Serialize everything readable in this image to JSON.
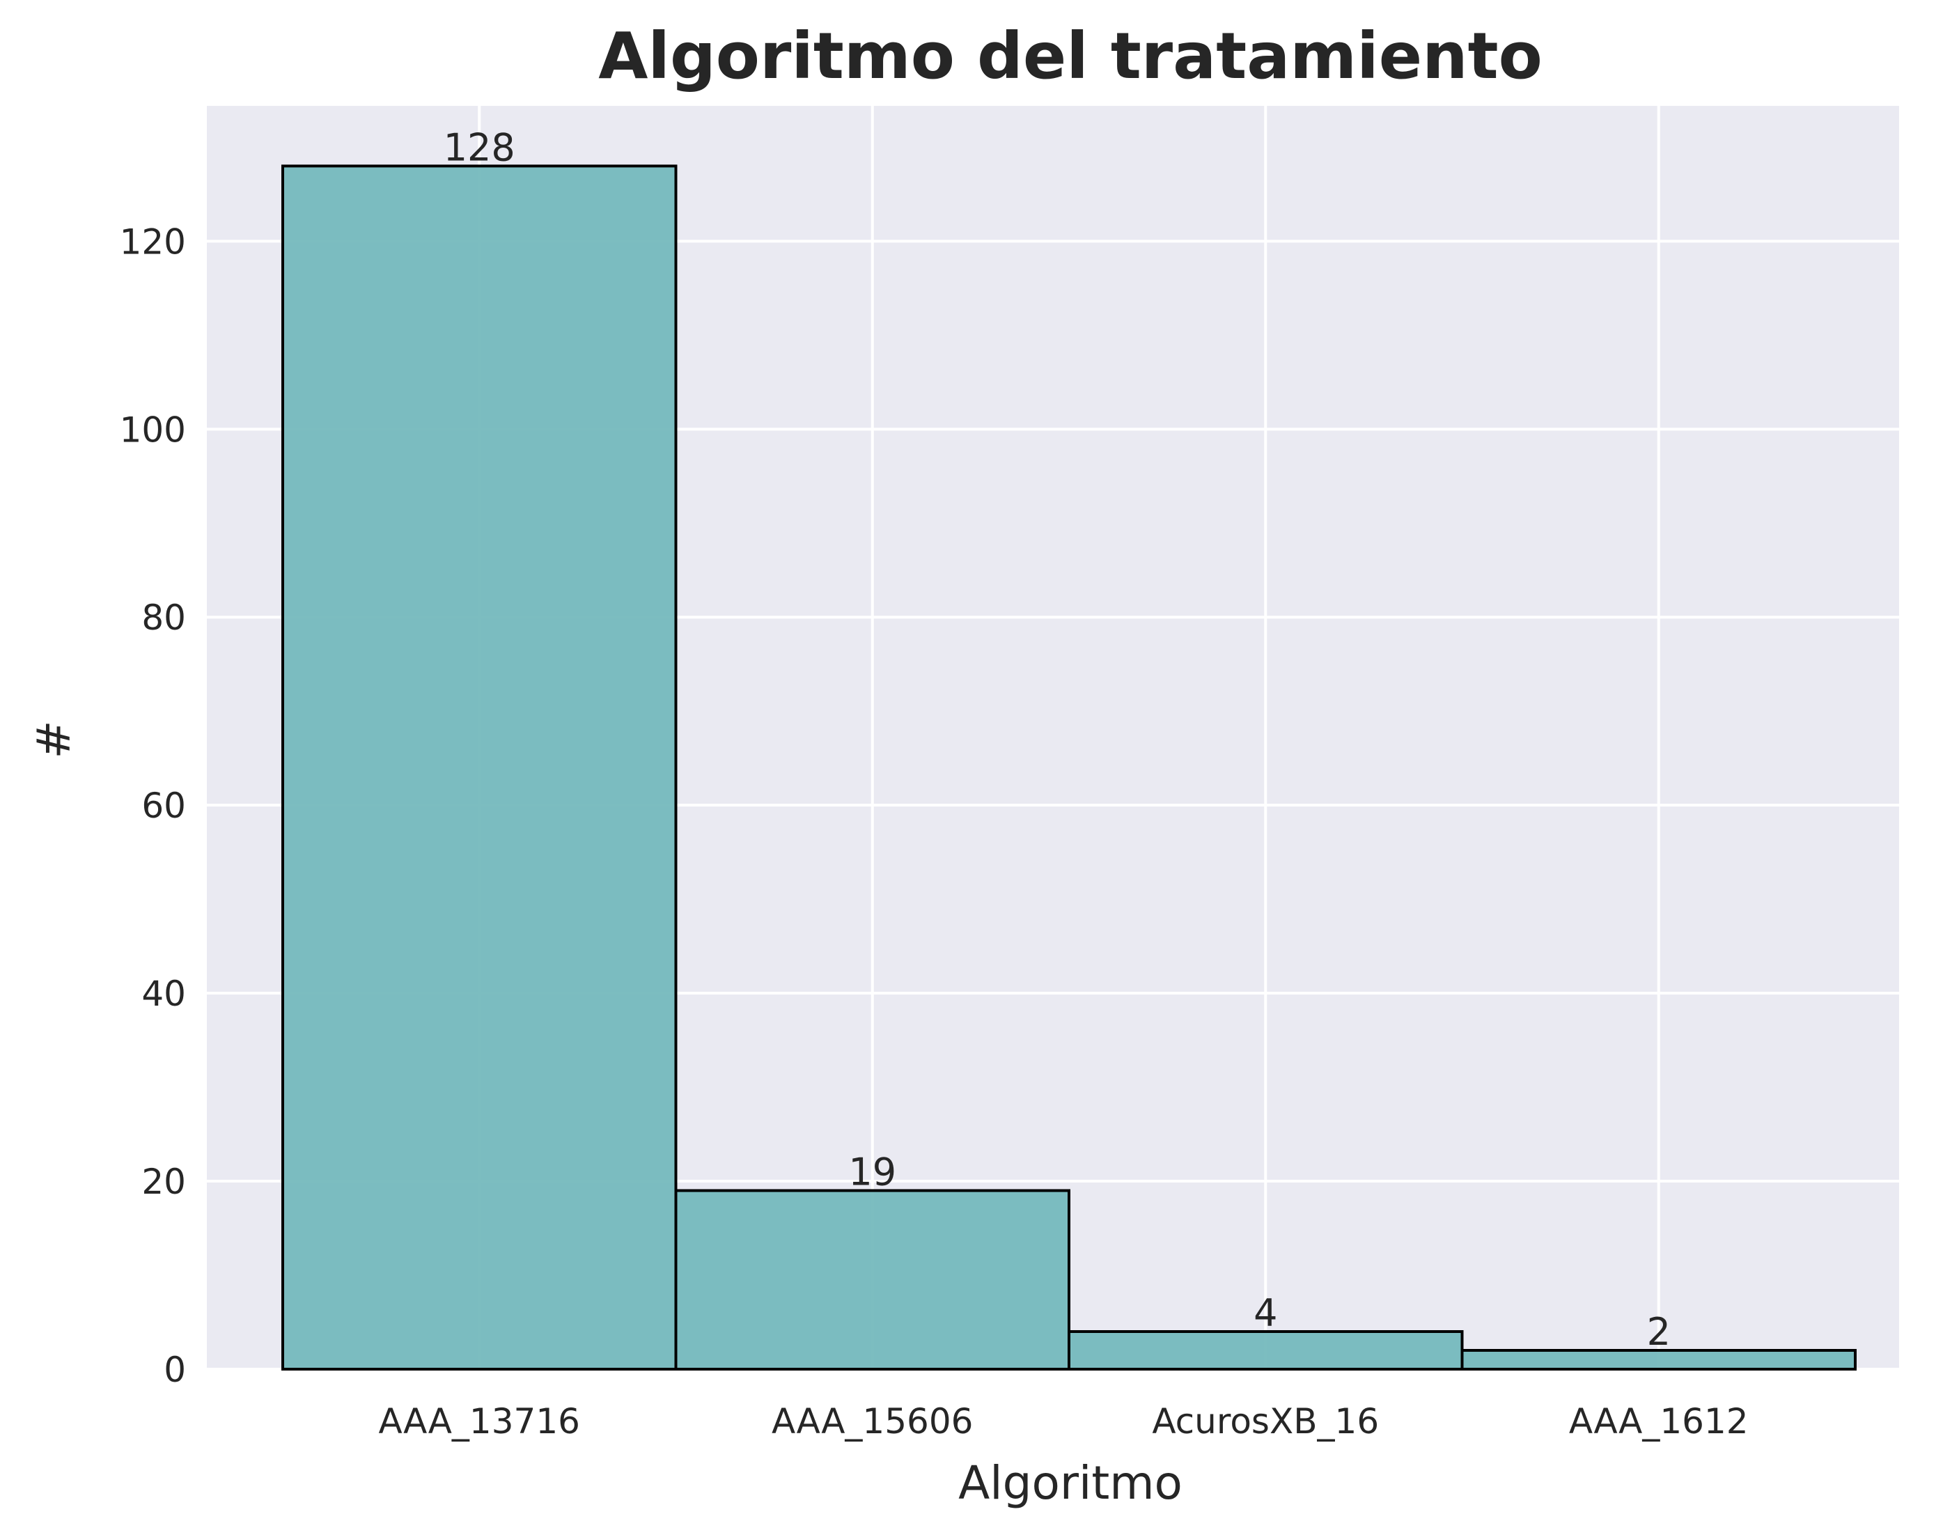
{
  "chart_data": {
    "type": "bar",
    "title": "Algoritmo del tratamiento",
    "xlabel": "Algoritmo",
    "ylabel": "#",
    "categories": [
      "AAA_13716",
      "AAA_15606",
      "AcurosXB_16",
      "AAA_1612"
    ],
    "values": [
      128,
      19,
      4,
      2
    ],
    "data_labels": [
      "128",
      "19",
      "4",
      "2"
    ],
    "ylim": [
      0,
      134.4
    ],
    "yticks": [
      0,
      20,
      40,
      60,
      80,
      100,
      120
    ],
    "ytick_labels": [
      "0",
      "20",
      "40",
      "60",
      "80",
      "100",
      "120"
    ],
    "grid": true,
    "legend": "none",
    "colors": {
      "bar_fill": "#75b9bd",
      "bar_edge": "#000000",
      "plot_background": "#eaeaf2",
      "grid": "#ffffff",
      "text": "#262626"
    }
  }
}
